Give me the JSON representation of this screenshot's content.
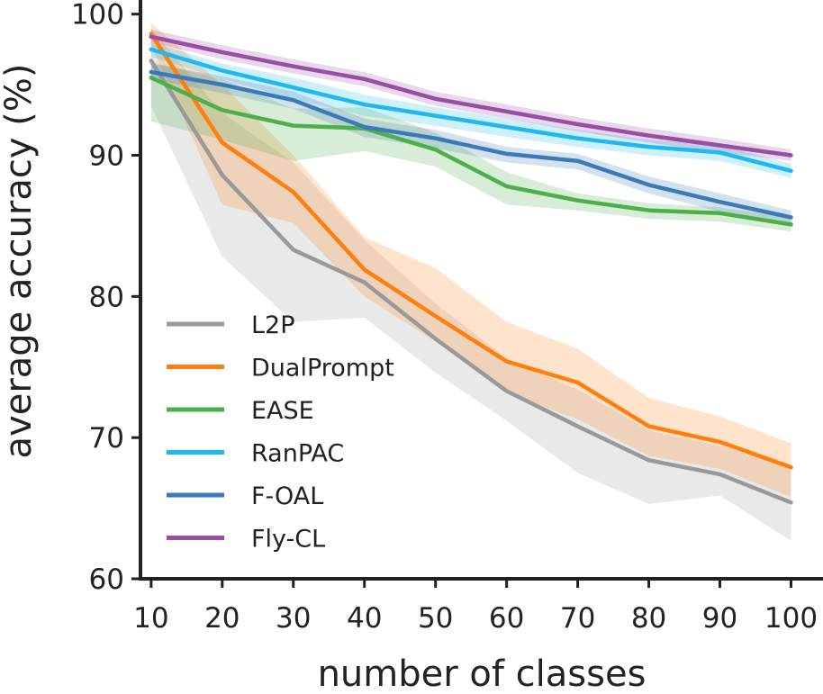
{
  "chart_data": {
    "type": "line",
    "title": "",
    "xlabel": "number of classes",
    "ylabel": "average accuracy (%)",
    "x": [
      10,
      20,
      30,
      40,
      50,
      60,
      70,
      80,
      90,
      100
    ],
    "xticks": [
      "10",
      "20",
      "30",
      "40",
      "50",
      "60",
      "70",
      "80",
      "90",
      "100"
    ],
    "yticks": [
      "60",
      "70",
      "80",
      "90",
      "100"
    ],
    "xlim": [
      8.5,
      104.5
    ],
    "ylim": [
      60,
      101
    ],
    "grid": false,
    "legend_position": "center-left",
    "series": [
      {
        "name": "L2P",
        "color": "#999999",
        "values": [
          96.7,
          88.6,
          83.3,
          81.0,
          77.0,
          73.3,
          70.8,
          68.4,
          67.4,
          65.4
        ],
        "lower": [
          93.5,
          82.8,
          78.2,
          78.5,
          74.6,
          71.2,
          67.5,
          65.3,
          65.9,
          62.7
        ],
        "upper": [
          99.0,
          93.0,
          89.5,
          84.0,
          79.5,
          75.6,
          73.4,
          70.5,
          69.4,
          68.0
        ]
      },
      {
        "name": "DualPrompt",
        "color": "#ff7f0e",
        "values": [
          98.6,
          90.9,
          87.4,
          81.9,
          78.6,
          75.4,
          73.9,
          70.8,
          69.7,
          67.9
        ],
        "lower": [
          97.8,
          86.5,
          85.2,
          80.0,
          76.8,
          73.2,
          71.3,
          68.7,
          67.8,
          65.8
        ],
        "upper": [
          99.4,
          95.0,
          90.0,
          84.2,
          82.0,
          78.2,
          76.3,
          72.8,
          71.5,
          69.6
        ]
      },
      {
        "name": "EASE",
        "color": "#4daf4a",
        "values": [
          95.5,
          93.2,
          92.1,
          91.9,
          90.4,
          87.8,
          86.8,
          86.1,
          85.9,
          85.1
        ],
        "lower": [
          92.4,
          91.1,
          89.6,
          90.3,
          89.2,
          86.5,
          86.1,
          85.5,
          85.3,
          84.6
        ],
        "upper": [
          96.6,
          95.4,
          93.3,
          93.4,
          91.6,
          88.8,
          87.3,
          86.6,
          86.3,
          85.6
        ]
      },
      {
        "name": "RanPAC",
        "color": "#1eb9f0",
        "values": [
          97.5,
          96.0,
          94.8,
          93.6,
          92.8,
          92.0,
          91.2,
          90.6,
          90.2,
          88.9
        ],
        "lower": [
          97.0,
          95.4,
          94.0,
          92.8,
          92.1,
          91.3,
          90.6,
          90.0,
          89.6,
          88.4
        ],
        "upper": [
          98.0,
          96.5,
          95.5,
          94.3,
          93.4,
          92.6,
          91.8,
          91.1,
          90.7,
          89.4
        ]
      },
      {
        "name": "F-OAL",
        "color": "#3b7ab8",
        "values": [
          95.9,
          95.0,
          93.9,
          92.0,
          91.2,
          90.1,
          89.6,
          87.9,
          86.7,
          85.6
        ],
        "lower": [
          95.4,
          94.4,
          93.3,
          91.3,
          90.5,
          89.5,
          89.0,
          87.3,
          86.0,
          85.0
        ],
        "upper": [
          96.5,
          95.6,
          94.5,
          92.6,
          91.8,
          90.6,
          90.1,
          88.5,
          87.3,
          86.1
        ]
      },
      {
        "name": "Fly-CL",
        "color": "#984ea3",
        "values": [
          98.4,
          97.3,
          96.3,
          95.4,
          94.0,
          93.1,
          92.2,
          91.4,
          90.7,
          90.0
        ],
        "lower": [
          98.0,
          96.8,
          95.8,
          94.9,
          93.5,
          92.6,
          91.7,
          90.9,
          90.2,
          89.6
        ],
        "upper": [
          98.9,
          97.8,
          96.8,
          95.9,
          94.5,
          93.6,
          92.7,
          91.9,
          91.2,
          90.4
        ]
      }
    ]
  }
}
